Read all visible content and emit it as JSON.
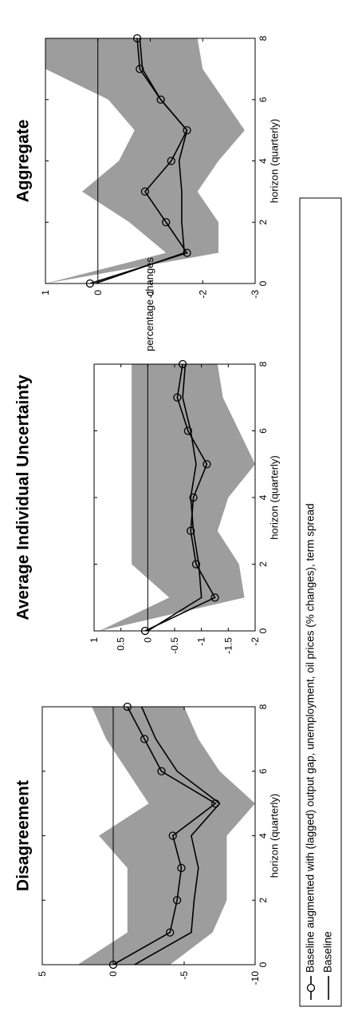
{
  "chart_data": [
    {
      "type": "line",
      "title": "Aggregate",
      "xlabel": "horizon (quarterly)",
      "ylabel": "percentage changes",
      "xlim": [
        0,
        8
      ],
      "ylim": [
        -3,
        1
      ],
      "xticks": [
        "0",
        "2",
        "4",
        "6",
        "8"
      ],
      "yticks": [
        "1",
        "0",
        "-1",
        "-2",
        "-3"
      ],
      "x": [
        0,
        1,
        2,
        3,
        4,
        5,
        6,
        7,
        8
      ],
      "band": {
        "upper": [
          1.0,
          -1.3,
          -0.6,
          0.3,
          -0.4,
          -0.7,
          -0.2,
          1.0,
          1.0
        ],
        "lower": [
          1.0,
          -2.3,
          -2.3,
          -1.9,
          -2.3,
          -2.8,
          -2.4,
          -2.0,
          -1.9
        ]
      },
      "series": [
        {
          "name": "Baseline augmented with (lagged) output gap, unemployment, oil prices (% changes), term spread",
          "marker": "circle",
          "values": [
            0.15,
            -1.7,
            -1.3,
            -0.9,
            -1.4,
            -1.7,
            -1.2,
            -0.8,
            -0.75
          ]
        },
        {
          "name": "Baseline",
          "marker": "none",
          "values": [
            0.05,
            -1.65,
            -1.6,
            -1.6,
            -1.55,
            -1.7,
            -1.2,
            -0.85,
            -0.8
          ]
        }
      ],
      "hline": 0
    },
    {
      "type": "line",
      "title": "Average Individual Uncertainty",
      "xlabel": "horizon (quarterly)",
      "xlim": [
        0,
        8
      ],
      "ylim": [
        -2,
        1
      ],
      "xticks": [
        "0",
        "2",
        "4",
        "6",
        "8"
      ],
      "yticks": [
        "1",
        "0.5",
        "0",
        "-0.5",
        "-1",
        "-1.5",
        "-2"
      ],
      "x": [
        0,
        1,
        2,
        3,
        4,
        5,
        6,
        7,
        8
      ],
      "band": {
        "upper": [
          0.9,
          -0.4,
          0.3,
          0.3,
          0.3,
          0.3,
          0.3,
          0.3,
          0.3
        ],
        "lower": [
          0.9,
          -1.8,
          -1.7,
          -1.3,
          -1.5,
          -2.0,
          -1.7,
          -1.4,
          -1.3
        ]
      },
      "series": [
        {
          "name": "Baseline augmented with (lagged) output gap, unemployment, oil prices (% changes), term spread",
          "marker": "circle",
          "values": [
            0.05,
            -1.25,
            -0.9,
            -0.8,
            -0.85,
            -1.1,
            -0.75,
            -0.55,
            -0.65
          ]
        },
        {
          "name": "Baseline",
          "marker": "none",
          "values": [
            0.0,
            -1.0,
            -0.95,
            -0.85,
            -0.8,
            -0.9,
            -0.8,
            -0.65,
            -0.7
          ]
        }
      ],
      "hline": 0
    },
    {
      "type": "line",
      "title": "Disagreement",
      "xlabel": "horizon (quarterly)",
      "xlim": [
        0,
        8
      ],
      "ylim": [
        -10,
        5
      ],
      "xticks": [
        "0",
        "2",
        "4",
        "6",
        "8"
      ],
      "yticks": [
        "5",
        "0",
        "-5",
        "-10"
      ],
      "x": [
        0,
        1,
        2,
        3,
        4,
        5,
        6,
        7,
        8
      ],
      "band": {
        "upper": [
          2.5,
          -1.0,
          -1.0,
          -1.0,
          1.0,
          -2.5,
          -1.0,
          0.5,
          1.5
        ],
        "lower": [
          -4.0,
          -7.0,
          -8.0,
          -8.0,
          -8.0,
          -10.0,
          -7.5,
          -6.0,
          -5.0
        ]
      },
      "series": [
        {
          "name": "Baseline augmented with (lagged) output gap, unemployment, oil prices (% changes), term spread",
          "marker": "circle",
          "values": [
            0.0,
            -4.0,
            -4.5,
            -4.8,
            -4.2,
            -7.2,
            -3.4,
            -2.2,
            -1.0
          ]
        },
        {
          "name": "Baseline",
          "marker": "none",
          "values": [
            -1.5,
            -5.5,
            -5.7,
            -6.0,
            -5.5,
            -7.5,
            -4.5,
            -3.0,
            -2.0
          ]
        }
      ],
      "hline": 0
    }
  ],
  "legend": {
    "items": [
      "Baseline augmented with (lagged) output gap, unemployment, oil prices (% changes), term spread",
      "Baseline"
    ]
  }
}
